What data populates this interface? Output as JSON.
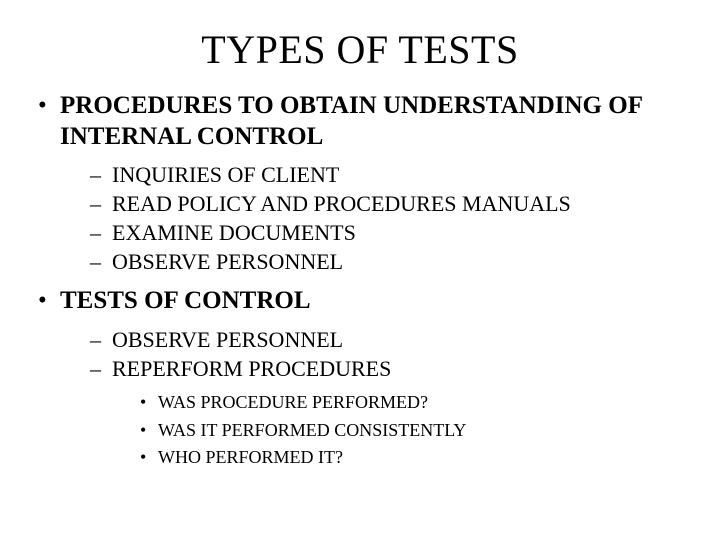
{
  "colors": {
    "background": "#ffffff",
    "text": "#000000"
  },
  "typography": {
    "family": "Times New Roman",
    "title_fontsize_pt": 40,
    "level1_fontsize_pt": 25,
    "level1_weight": "bold",
    "level2_fontsize_pt": 22,
    "level2_weight": "normal",
    "level3_fontsize_pt": 18,
    "level3_weight": "normal"
  },
  "bullets": {
    "level1_marker": "•",
    "level2_marker": "–",
    "level3_marker": "•"
  },
  "slide": {
    "title": "TYPES OF TESTS",
    "items": [
      {
        "text": "PROCEDURES TO OBTAIN UNDERSTANDING OF INTERNAL CONTROL",
        "children": [
          {
            "text": "INQUIRIES OF CLIENT"
          },
          {
            "text": "READ POLICY AND PROCEDURES MANUALS"
          },
          {
            "text": "EXAMINE DOCUMENTS"
          },
          {
            "text": "OBSERVE PERSONNEL"
          }
        ]
      },
      {
        "text": "TESTS OF CONTROL",
        "children": [
          {
            "text": "OBSERVE PERSONNEL"
          },
          {
            "text": "REPERFORM PROCEDURES",
            "children": [
              {
                "text": "WAS PROCEDURE PERFORMED?"
              },
              {
                "text": "WAS IT PERFORMED CONSISTENTLY"
              },
              {
                "text": "WHO PERFORMED IT?"
              }
            ]
          }
        ]
      }
    ]
  }
}
